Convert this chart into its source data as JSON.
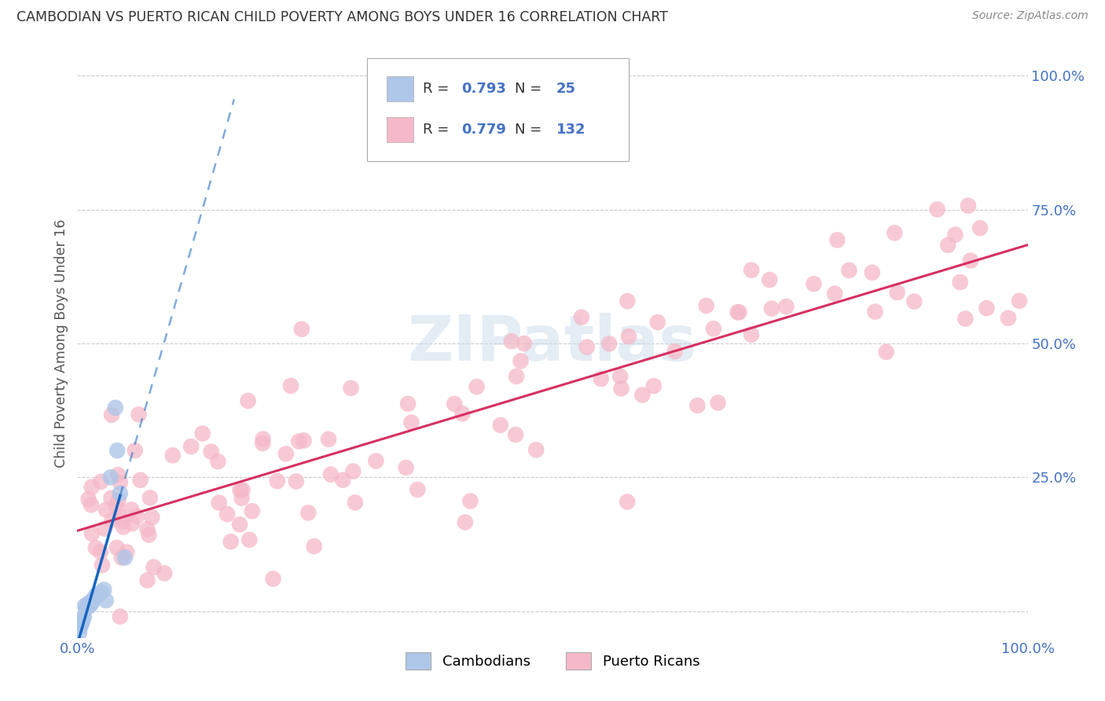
{
  "title": "CAMBODIAN VS PUERTO RICAN CHILD POVERTY AMONG BOYS UNDER 16 CORRELATION CHART",
  "source": "Source: ZipAtlas.com",
  "ylabel": "Child Poverty Among Boys Under 16",
  "background_color": "#ffffff",
  "grid_color": "#cccccc",
  "title_color": "#333333",
  "axis_label_color": "#555555",
  "tick_label_color": "#4472c4",
  "watermark_text": "ZIPatlas",
  "legend_R1": "0.793",
  "legend_N1": "25",
  "legend_R2": "0.779",
  "legend_N2": "132",
  "cambodian_color": "#aec6e8",
  "puerto_rican_color": "#f5b8c8",
  "cambodian_line_color": "#1565c0",
  "puerto_rican_line_color": "#d63060",
  "xlim": [
    0,
    1.0
  ],
  "ylim": [
    -0.05,
    1.05
  ],
  "right_yticks": [
    0.0,
    0.25,
    0.5,
    0.75,
    1.0
  ],
  "right_yticklabels": [
    "",
    "25.0%",
    "50.0%",
    "75.0%",
    "100.0%"
  ],
  "xticks": [
    0.0,
    0.25,
    0.5,
    0.75,
    1.0
  ],
  "xticklabels": [
    "0.0%",
    "",
    "",
    "",
    "100.0%"
  ]
}
